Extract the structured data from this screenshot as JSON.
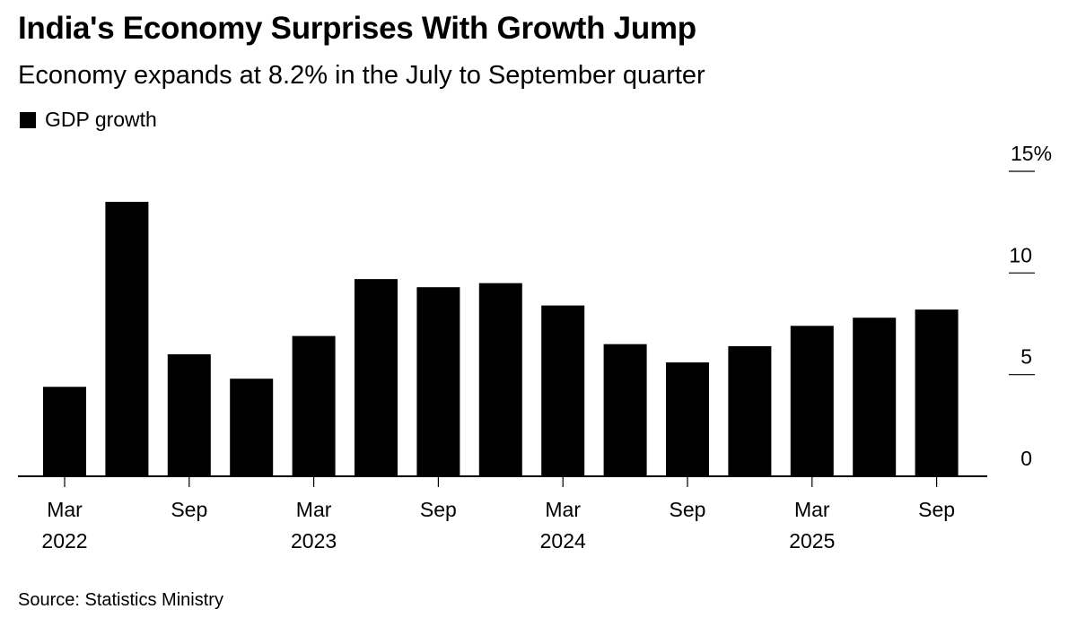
{
  "title": "India's Economy Surprises With Growth Jump",
  "subtitle": "Economy expands at 8.2% in the July to September quarter",
  "legend": [
    {
      "label": "GDP growth",
      "color": "#000000"
    }
  ],
  "source": "Source: Statistics Ministry",
  "chart_data": {
    "type": "bar",
    "title": "India's Economy Surprises With Growth Jump",
    "subtitle": "Economy expands at 8.2% in the July to September quarter",
    "xlabel": "",
    "ylabel": "",
    "ylim": [
      0,
      15
    ],
    "y_ticks": [
      0,
      5,
      10,
      15
    ],
    "y_tick_labels": [
      "0",
      "5",
      "10",
      "15%"
    ],
    "y_axis_position": "right",
    "grid": false,
    "legend_position": "top-left",
    "categories": [
      "Mar 2022",
      "Jun 2022",
      "Sep 2022",
      "Dec 2022",
      "Mar 2023",
      "Jun 2023",
      "Sep 2023",
      "Dec 2023",
      "Mar 2024",
      "Jun 2024",
      "Sep 2024",
      "Dec 2024",
      "Mar 2025",
      "Jun 2025",
      "Sep 2025"
    ],
    "x_tick_labels": [
      {
        "index": 0,
        "line1": "Mar",
        "line2": "2022"
      },
      {
        "index": 2,
        "line1": "Sep",
        "line2": ""
      },
      {
        "index": 4,
        "line1": "Mar",
        "line2": "2023"
      },
      {
        "index": 6,
        "line1": "Sep",
        "line2": ""
      },
      {
        "index": 8,
        "line1": "Mar",
        "line2": "2024"
      },
      {
        "index": 10,
        "line1": "Sep",
        "line2": ""
      },
      {
        "index": 12,
        "line1": "Mar",
        "line2": "2025"
      },
      {
        "index": 14,
        "line1": "Sep",
        "line2": ""
      }
    ],
    "series": [
      {
        "name": "GDP growth",
        "color": "#000000",
        "values": [
          4.4,
          13.5,
          6.0,
          4.8,
          6.9,
          9.7,
          9.3,
          9.5,
          8.4,
          6.5,
          5.6,
          6.4,
          7.4,
          7.8,
          8.2
        ]
      }
    ],
    "source": "Source: Statistics Ministry"
  }
}
